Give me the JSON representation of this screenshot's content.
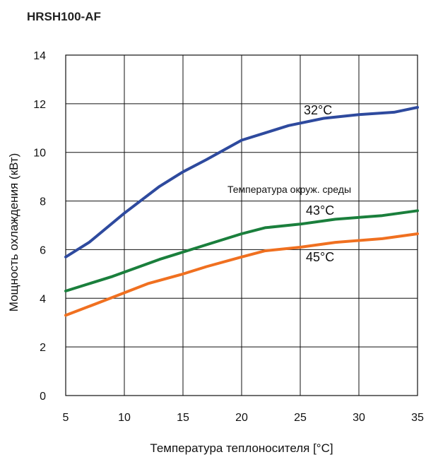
{
  "chart_data": {
    "type": "line",
    "title": "HRSH100-AF",
    "xlabel": "Температура теплоносителя [°C]",
    "ylabel": "Мощность охлаждения (кВт)",
    "xlim": [
      5,
      35
    ],
    "ylim": [
      0,
      14
    ],
    "xticks": [
      5,
      10,
      15,
      20,
      25,
      30,
      35
    ],
    "yticks": [
      0,
      2,
      4,
      6,
      8,
      10,
      12,
      14
    ],
    "grid": true,
    "legend_title": "Температура окруж. среды",
    "series": [
      {
        "name": "32°C",
        "color": "#2e4a9e",
        "x": [
          5,
          7,
          10,
          13,
          15,
          17,
          20,
          22,
          24,
          27,
          30,
          33,
          35
        ],
        "y": [
          5.7,
          6.3,
          7.5,
          8.6,
          9.2,
          9.7,
          10.5,
          10.8,
          11.1,
          11.4,
          11.55,
          11.65,
          11.85
        ]
      },
      {
        "name": "43°C",
        "color": "#1a7f3c",
        "x": [
          5,
          9,
          13,
          17,
          20,
          22,
          25,
          28,
          32,
          35
        ],
        "y": [
          4.3,
          4.9,
          5.6,
          6.2,
          6.65,
          6.9,
          7.05,
          7.25,
          7.4,
          7.6
        ]
      },
      {
        "name": "45°C",
        "color": "#f07020",
        "x": [
          5,
          8,
          12,
          15,
          17,
          20,
          22,
          25,
          28,
          32,
          35
        ],
        "y": [
          3.3,
          3.85,
          4.6,
          5.0,
          5.3,
          5.7,
          5.95,
          6.1,
          6.3,
          6.45,
          6.65
        ]
      }
    ]
  }
}
